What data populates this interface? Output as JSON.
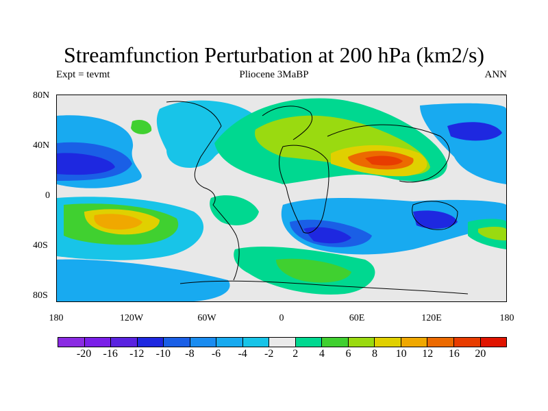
{
  "figure": {
    "title": "Streamfunction Perturbation at 200 hPa (km2/s)",
    "left_label": "Expt = tevmt",
    "center_label": "Pliocene   3MaBP",
    "right_label": "ANN"
  },
  "map": {
    "lat_labels": [
      "80N",
      "40N",
      "0",
      "40S",
      "80S"
    ],
    "lon_labels": [
      "180",
      "120W",
      "60W",
      "0",
      "60E",
      "120E",
      "180"
    ]
  },
  "colorbar": {
    "colors": [
      "#8a2be2",
      "#7a1fe8",
      "#5a23e0",
      "#1e28e0",
      "#1a5fe6",
      "#1a8cf0",
      "#18aaf0",
      "#18c4e8",
      "#eaeaea",
      "#00d890",
      "#40d030",
      "#9ada10",
      "#e0d000",
      "#f0a800",
      "#ec6a00",
      "#e83c00",
      "#e01400"
    ],
    "labels": [
      "-20",
      "-16",
      "-12",
      "-10",
      "-8",
      "-6",
      "-4",
      "-2",
      "2",
      "4",
      "6",
      "8",
      "10",
      "12",
      "16",
      "20"
    ]
  }
}
